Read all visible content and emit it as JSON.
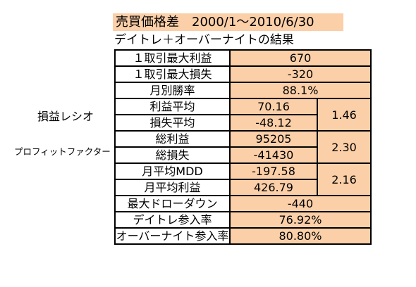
{
  "title": "売買価格差　2000/1〜2010/6/30",
  "subtitle": "デイトレ＋オーバーナイトの結果",
  "side_labels": {
    "profit_loss_ratio": "損益レシオ",
    "profit_factor": "プロフィットファクター"
  },
  "rows": {
    "max_profit_per_trade": {
      "label": "１取引最大利益",
      "value": "670"
    },
    "max_loss_per_trade": {
      "label": "１取引最大損失",
      "value": "-320"
    },
    "monthly_win_rate": {
      "label": "月別勝率",
      "value": "88.1%"
    },
    "avg_profit": {
      "label": "利益平均",
      "value": "70.16"
    },
    "avg_loss": {
      "label": "損失平均",
      "value": "-48.12"
    },
    "profit_loss_ratio": {
      "value": "1.46"
    },
    "total_profit": {
      "label": "総利益",
      "value": "95205"
    },
    "total_loss": {
      "label": "総損失",
      "value": "-41430"
    },
    "profit_factor": {
      "value": "2.30"
    },
    "monthly_avg_mdd": {
      "label": "月平均MDD",
      "value": "-197.58"
    },
    "monthly_avg_profit": {
      "label": "月平均利益",
      "value": "426.79"
    },
    "mdd_ratio": {
      "value": "2.16"
    },
    "max_drawdown": {
      "label": "最大ドローダウン",
      "value": "-440"
    },
    "daytrade_participation": {
      "label": "デイトレ参入率",
      "value": "76.92%"
    },
    "overnight_participation": {
      "label": "オーバーナイト参入率",
      "value": "80.80%"
    }
  },
  "colors": {
    "value_fill": "#fbcfa8",
    "border": "#000000"
  }
}
